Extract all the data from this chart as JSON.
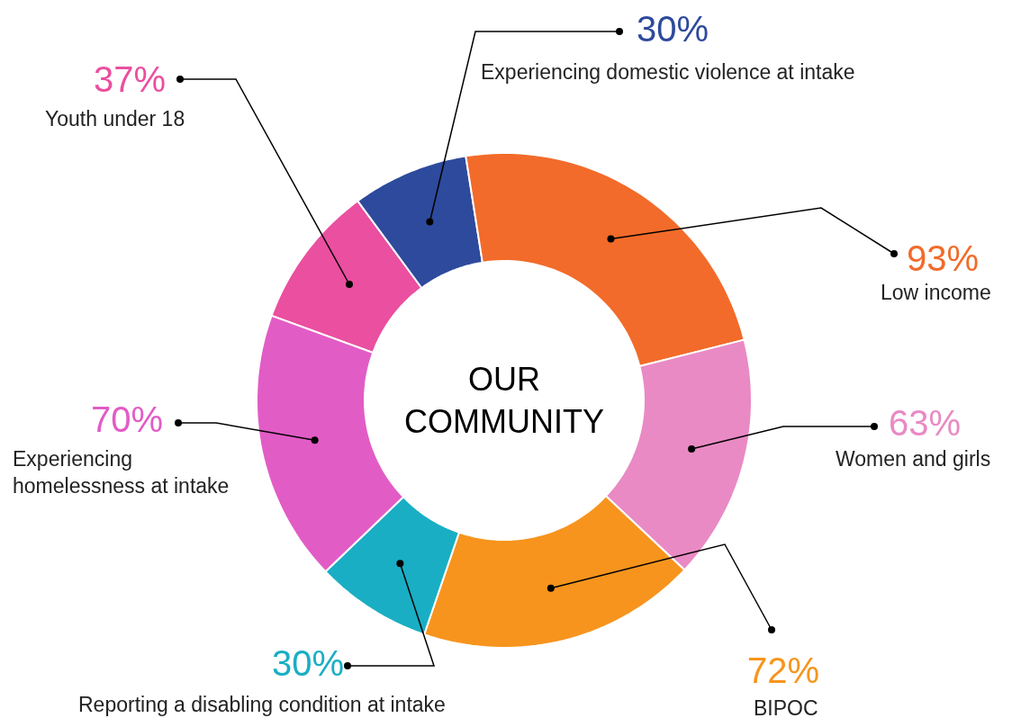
{
  "chart_data": {
    "type": "other",
    "title": "OUR COMMUNITY",
    "categories": [
      "Youth under 18",
      "Experiencing domestic violence at intake",
      "Low income",
      "Women and girls",
      "BIPOC",
      "Reporting a disabling condition at intake",
      "Experiencing homelessness at intake"
    ],
    "values": [
      37,
      30,
      93,
      63,
      72,
      30,
      70
    ],
    "value_labels": [
      "37%",
      "30%",
      "93%",
      "63%",
      "72%",
      "30%",
      "70%"
    ],
    "colors": [
      "#ea4fa0",
      "#2e4a9c",
      "#f26b2a",
      "#e98ac4",
      "#f7941d",
      "#19aec4",
      "#e25cc6"
    ]
  }
}
